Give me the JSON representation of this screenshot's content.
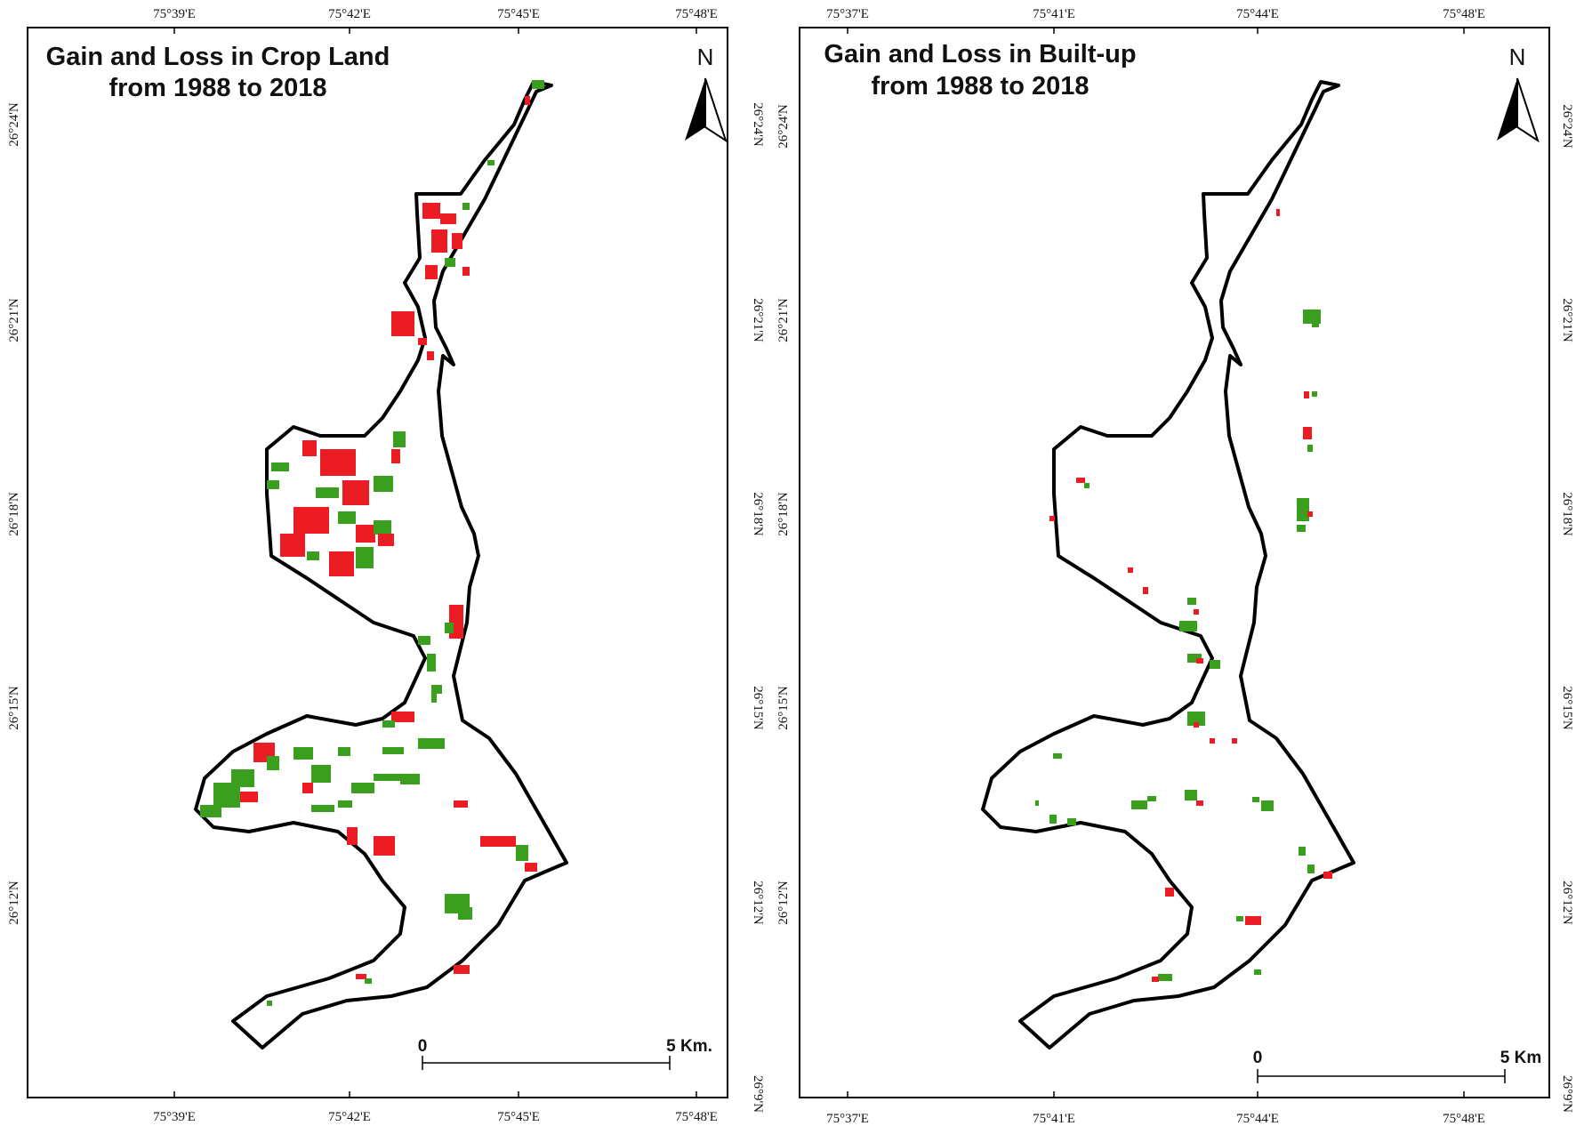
{
  "panels": [
    {
      "title_line1": "Gain and Loss in Crop Land",
      "title_line2": "from 1988 to 2018",
      "north_label": "N",
      "scale": {
        "start": "0",
        "end": "5 Km."
      },
      "x_ticks": [
        "75°39'E",
        "75°42'E",
        "75°45'E",
        "75°48'E"
      ],
      "y_ticks": [
        "26°24'N",
        "26°21'N",
        "26°18'N",
        "26°15'N",
        "26°12'N",
        "26°9'N"
      ]
    },
    {
      "title_line1": "Gain and Loss in Built-up",
      "title_line2": "from 1988 to 2018",
      "north_label": "N",
      "scale": {
        "start": "0",
        "end": "5 Km"
      },
      "x_ticks": [
        "75°37'E",
        "75°41'E",
        "75°44'E",
        "75°48'E"
      ],
      "y_ticks": [
        "26°24'N",
        "26°21'N",
        "26°18'N",
        "26°15'N",
        "26°12'N",
        "26°9'N"
      ]
    }
  ],
  "colors": {
    "gain": "#3a9e1e",
    "loss": "#ec1c24",
    "boundary": "#000000"
  }
}
